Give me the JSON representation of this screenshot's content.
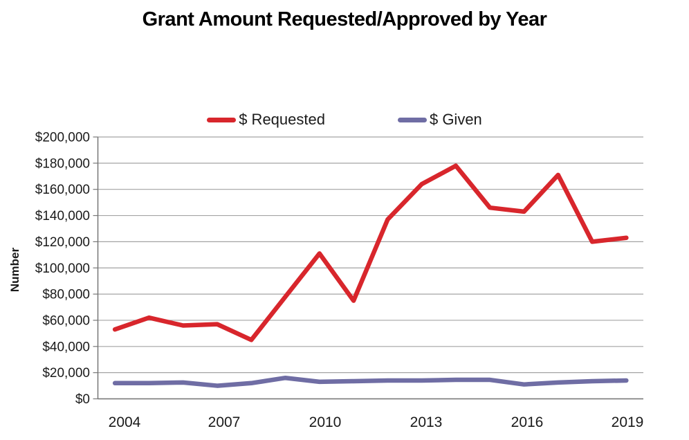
{
  "title": "Grant Amount Requested/Approved by Year",
  "legend": {
    "items": [
      {
        "label": "$ Requested",
        "color": "#d8262c"
      },
      {
        "label": "$ Given",
        "color": "#6f6da4"
      }
    ]
  },
  "y_axis": {
    "title": "Number",
    "min": 0,
    "max": 200000,
    "step": 20000,
    "tick_labels": [
      "$0",
      "$20,000",
      "$40,000",
      "$60,000",
      "$80,000",
      "$100,000",
      "$120,000",
      "$140,000",
      "$160,000",
      "$180,000",
      "$200,000"
    ]
  },
  "x_axis": {
    "tick_labels": [
      "2004",
      "2007",
      "2010",
      "2013",
      "2016",
      "2019"
    ],
    "tick_category_indices": [
      0,
      3,
      6,
      9,
      12,
      15
    ]
  },
  "colors": {
    "gridline": "#a3a3a3",
    "axis": "#777777",
    "text": "#1a1a1a"
  },
  "chart_data": {
    "type": "line",
    "title": "Grant Amount Requested/Approved by Year",
    "xlabel": "",
    "ylabel": "Number",
    "ylim": [
      0,
      200000
    ],
    "grid": true,
    "legend_position": "top",
    "categories": [
      2004,
      2005,
      2006,
      2007,
      2008,
      2009,
      2010,
      2011,
      2012,
      2013,
      2014,
      2015,
      2016,
      2017,
      2018,
      2019
    ],
    "series": [
      {
        "name": "$ Requested",
        "color": "#d8262c",
        "values": [
          53000,
          62000,
          56000,
          57000,
          45000,
          78000,
          111000,
          75000,
          137000,
          164000,
          178000,
          146000,
          143000,
          171000,
          120000,
          123000
        ]
      },
      {
        "name": "$ Given",
        "color": "#6f6da4",
        "values": [
          12000,
          12000,
          12500,
          10000,
          12000,
          16000,
          13000,
          13500,
          14000,
          14000,
          14500,
          14500,
          11000,
          12500,
          13500,
          14000
        ]
      }
    ]
  }
}
